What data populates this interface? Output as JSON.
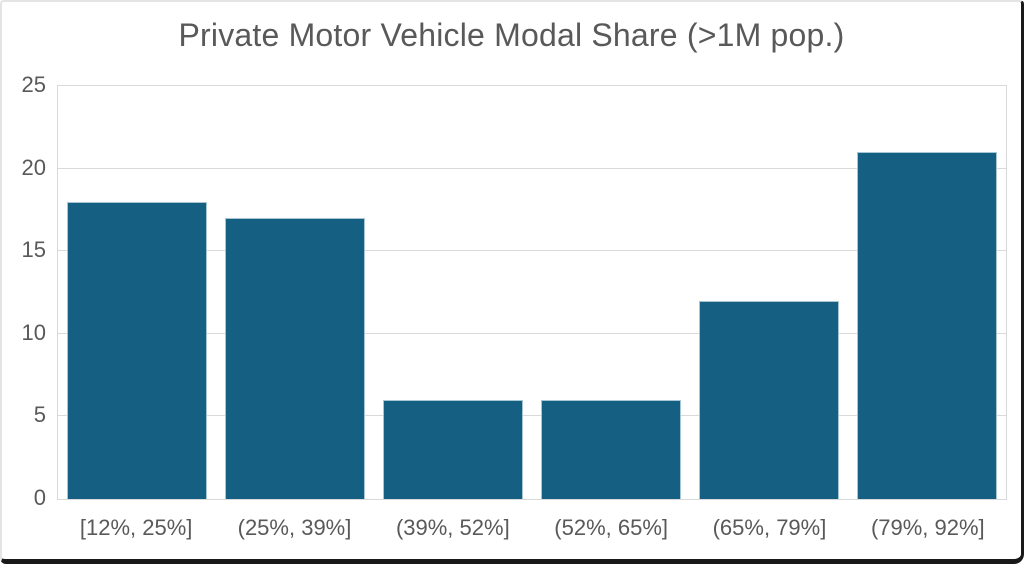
{
  "window": {
    "background": "#ffffff",
    "shadow_edge_color": "#191919",
    "frame_color": "#e4e4e4"
  },
  "chart_data": {
    "type": "bar",
    "title": "Private Motor Vehicle Modal Share (>1M pop.)",
    "categories": [
      "[12%, 25%]",
      "(25%, 39%]",
      "(39%, 52%]",
      "(52%, 65%]",
      "(65%, 79%]",
      "(79%, 92%]"
    ],
    "values": [
      18,
      17,
      6,
      6,
      12,
      21
    ],
    "xlabel": "",
    "ylabel": "",
    "ylim": [
      0,
      25
    ],
    "yticks": [
      0,
      5,
      10,
      15,
      20,
      25
    ],
    "grid": "horizontal",
    "legend": "none",
    "colors": {
      "bar_fill": "#156082",
      "bar_border": "#a7c6d4",
      "gridline": "#d9d9d9",
      "plot_border": "#d9d9d9",
      "title_text": "#595959",
      "axis_text": "#595959"
    }
  }
}
